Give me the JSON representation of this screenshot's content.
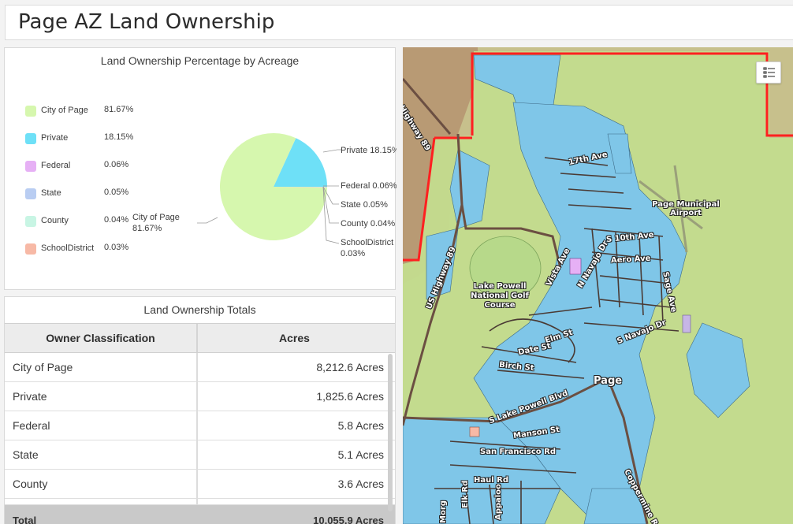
{
  "header": {
    "title": "Page AZ Land Ownership"
  },
  "pie_panel": {
    "title": "Land Ownership Percentage by Acreage",
    "legend": [
      {
        "label": "City of Page",
        "pct": "81.67%",
        "color": "#d6f7ae"
      },
      {
        "label": "Private",
        "pct": "18.15%",
        "color": "#6ee0f7"
      },
      {
        "label": "Federal",
        "pct": "0.06%",
        "color": "#e6b0f5"
      },
      {
        "label": "State",
        "pct": "0.05%",
        "color": "#b9cdf2"
      },
      {
        "label": "County",
        "pct": "0.04%",
        "color": "#c8f5e4"
      },
      {
        "label": "SchoolDistrict",
        "pct": "0.03%",
        "color": "#f7b9a6"
      }
    ],
    "callouts": {
      "city": "City of Page",
      "city_pct": "81.67%",
      "private": "Private 18.15%",
      "federal": "Federal 0.06%",
      "state": "State 0.05%",
      "county": "County 0.04%",
      "school": "SchoolDistrict",
      "school_pct": "0.03%"
    }
  },
  "chart_data": {
    "type": "pie",
    "title": "Land Ownership Percentage by Acreage",
    "series": [
      {
        "name": "City of Page",
        "value": 81.67,
        "color": "#d6f7ae"
      },
      {
        "name": "Private",
        "value": 18.15,
        "color": "#6ee0f7"
      },
      {
        "name": "Federal",
        "value": 0.06,
        "color": "#e6b0f5"
      },
      {
        "name": "State",
        "value": 0.05,
        "color": "#b9cdf2"
      },
      {
        "name": "County",
        "value": 0.04,
        "color": "#c8f5e4"
      },
      {
        "name": "SchoolDistrict",
        "value": 0.03,
        "color": "#f7b9a6"
      }
    ],
    "legend_position": "left"
  },
  "table_panel": {
    "title": "Land Ownership Totals",
    "columns": [
      "Owner Classification",
      "Acres"
    ],
    "rows": [
      {
        "owner": "City of Page",
        "acres": "8,212.6 Acres"
      },
      {
        "owner": "Private",
        "acres": "1,825.6 Acres"
      },
      {
        "owner": "Federal",
        "acres": "5.8 Acres"
      },
      {
        "owner": "State",
        "acres": "5.1 Acres"
      },
      {
        "owner": "County",
        "acres": "3.6 Acres"
      }
    ],
    "total": {
      "owner": "Total",
      "acres": "10,055.9 Acres"
    }
  },
  "map": {
    "labels": {
      "highway89_north": "Highway 89",
      "us_highway89": "US Highway 89",
      "ave17": "17th Ave",
      "airport": "Page Municipal Airport",
      "s10th": "S 10th Ave",
      "aero": "Aero Ave",
      "vista": "Vista Ave",
      "nnavajo": "N Navajo Dr",
      "sage": "Sage Ave",
      "golf": "Lake Powell National Golf Course",
      "snavajo": "S Navajo Dr",
      "elm": "Elm St",
      "date": "Date St",
      "birch": "Birch St",
      "page": "Page",
      "lakepowell": "S Lake Powell Blvd",
      "manson": "Manson St",
      "sanfran": "San Francisco Rd",
      "haul": "Haul Rd",
      "elk": "Elk Rd",
      "appaloosa": "Appaloo",
      "morgan": "Morg",
      "coppermine": "Coppermine Rd"
    },
    "colors": {
      "boundary": "#ff2020",
      "private_parcel": "#7fc6e8",
      "city_land": "#c3dc8e"
    }
  }
}
